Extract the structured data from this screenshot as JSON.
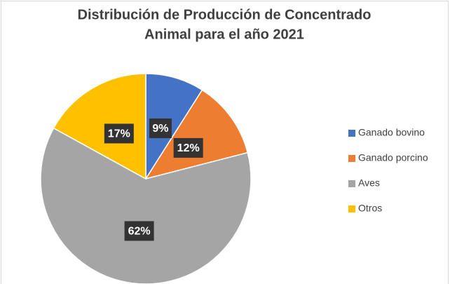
{
  "chart_data": {
    "type": "pie",
    "title": [
      "Distribución de Producción de Concentrado",
      "Animal para el año 2021"
    ],
    "categories": [
      "Ganado bovino",
      "Ganado porcino",
      "Aves",
      "Otros"
    ],
    "values": [
      9,
      12,
      62,
      17
    ],
    "value_labels": [
      "9%",
      "12%",
      "62%",
      "17%"
    ],
    "colors": [
      "#4472c4",
      "#ed7d31",
      "#a5a5a5",
      "#ffc000"
    ],
    "legend": "right"
  }
}
